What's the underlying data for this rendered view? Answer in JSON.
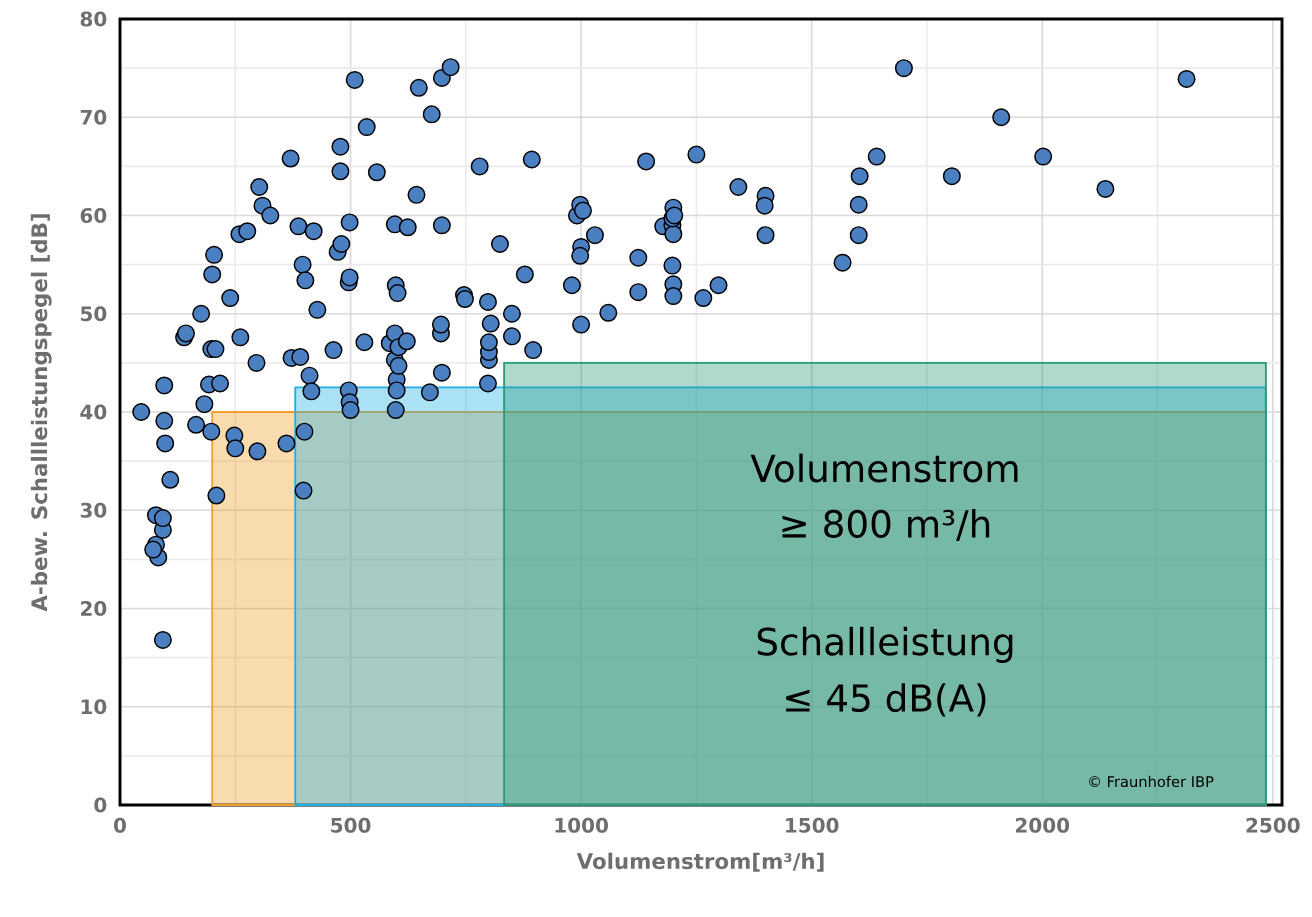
{
  "chart_data": {
    "type": "scatter",
    "xlabel": "Volumenstrom[m³/h]",
    "ylabel": "A-bew.  Schallleistungspegel [dB]",
    "xlim": [
      0,
      2520
    ],
    "ylim": [
      0,
      80
    ],
    "xticks": [
      0,
      500,
      1000,
      1500,
      2000,
      2500
    ],
    "yticks": [
      0,
      10,
      20,
      30,
      40,
      50,
      60,
      70,
      80
    ],
    "grid": true,
    "series": [
      {
        "type": "area",
        "marker": "none",
        "color": "#f0a030",
        "x": [
          200,
          2485
        ],
        "values": [
          40,
          40
        ]
      },
      {
        "type": "area",
        "marker": "none",
        "color": "#1fb0e6",
        "x": [
          380,
          2485
        ],
        "values": [
          42.5,
          42.5
        ]
      },
      {
        "type": "area",
        "marker": "none",
        "color": "#2a9a7a",
        "x": [
          833,
          2485
        ],
        "values": [
          45,
          45
        ]
      },
      {
        "marker": "circle",
        "color": "#4a7fc1",
        "x": [
          46,
          93,
          83,
          78,
          78,
          72,
          93,
          93,
          98,
          96,
          96,
          109,
          139,
          143,
          176,
          183,
          165,
          193,
          200,
          204,
          198,
          207,
          198,
          217,
          209,
          239,
          259,
          276,
          261,
          248,
          250,
          298,
          296,
          302,
          309,
          326,
          361,
          372,
          370,
          387,
          391,
          396,
          402,
          400,
          398,
          411,
          415,
          420,
          428,
          463,
          472,
          478,
          478,
          480,
          496,
          496,
          498,
          498,
          498,
          500,
          509,
          530,
          535,
          557,
          585,
          596,
          598,
          602,
          596,
          596,
          600,
          600,
          598,
          604,
          604,
          622,
          624,
          643,
          648,
          672,
          676,
          698,
          717,
          696,
          696,
          698,
          698,
          746,
          748,
          780,
          798,
          798,
          800,
          800,
          800,
          804,
          824,
          850,
          850,
          878,
          893,
          896,
          980,
          991,
          998,
          1000,
          998,
          1000,
          1004,
          1030,
          1059,
          1124,
          1124,
          1141,
          1178,
          1198,
          1200,
          1198,
          1200,
          1198,
          1200,
          1200,
          1202,
          1250,
          1265,
          1298,
          1341,
          1400,
          1398,
          1400,
          1567,
          1602,
          1602,
          1604,
          1641,
          1700,
          1804,
          1911,
          2002,
          2137,
          2313
        ],
        "values": [
          40.0,
          16.8,
          25.2,
          26.5,
          29.5,
          26,
          28,
          29.2,
          36.8,
          39.1,
          42.7,
          33.1,
          47.6,
          48,
          50,
          40.8,
          38.7,
          42.8,
          54,
          56,
          46.4,
          46.4,
          38,
          42.9,
          31.5,
          51.6,
          58.1,
          58.4,
          47.6,
          37.6,
          36.3,
          36,
          45,
          62.9,
          61,
          60,
          36.8,
          45.5,
          65.8,
          58.9,
          45.6,
          55,
          53.4,
          38,
          32,
          43.7,
          42.1,
          58.4,
          50.4,
          46.3,
          56.3,
          64.5,
          67,
          57.1,
          53.2,
          42.2,
          59.3,
          53.7,
          41,
          40.2,
          73.8,
          47.1,
          69,
          64.4,
          47,
          59.1,
          52.9,
          52.1,
          48,
          45.3,
          43.3,
          42.2,
          40.2,
          44.7,
          46.6,
          47.2,
          58.8,
          62.1,
          73,
          42,
          70.3,
          74,
          75.1,
          48,
          48.9,
          44,
          59,
          51.9,
          51.5,
          65,
          51.2,
          42.9,
          45.3,
          46.1,
          47.1,
          49,
          57.1,
          50,
          47.7,
          54,
          65.7,
          46.3,
          52.9,
          60,
          61.1,
          56.8,
          55.9,
          48.9,
          60.5,
          58,
          50.1,
          55.7,
          52.2,
          65.5,
          58.9,
          59,
          58.1,
          59.7,
          60.8,
          54.9,
          53,
          51.8,
          60,
          66.2,
          51.6,
          52.9,
          62.9,
          62,
          61,
          58,
          55.2,
          58,
          61.1,
          64,
          66,
          75,
          64,
          70,
          66,
          62.7,
          73.9
        ]
      }
    ],
    "annotations": [
      "Volumenstrom",
      "≥ 800 m³/h",
      "Schallleistung",
      "≤ 45 dB(A)",
      "© Fraunhofer IBP"
    ]
  }
}
